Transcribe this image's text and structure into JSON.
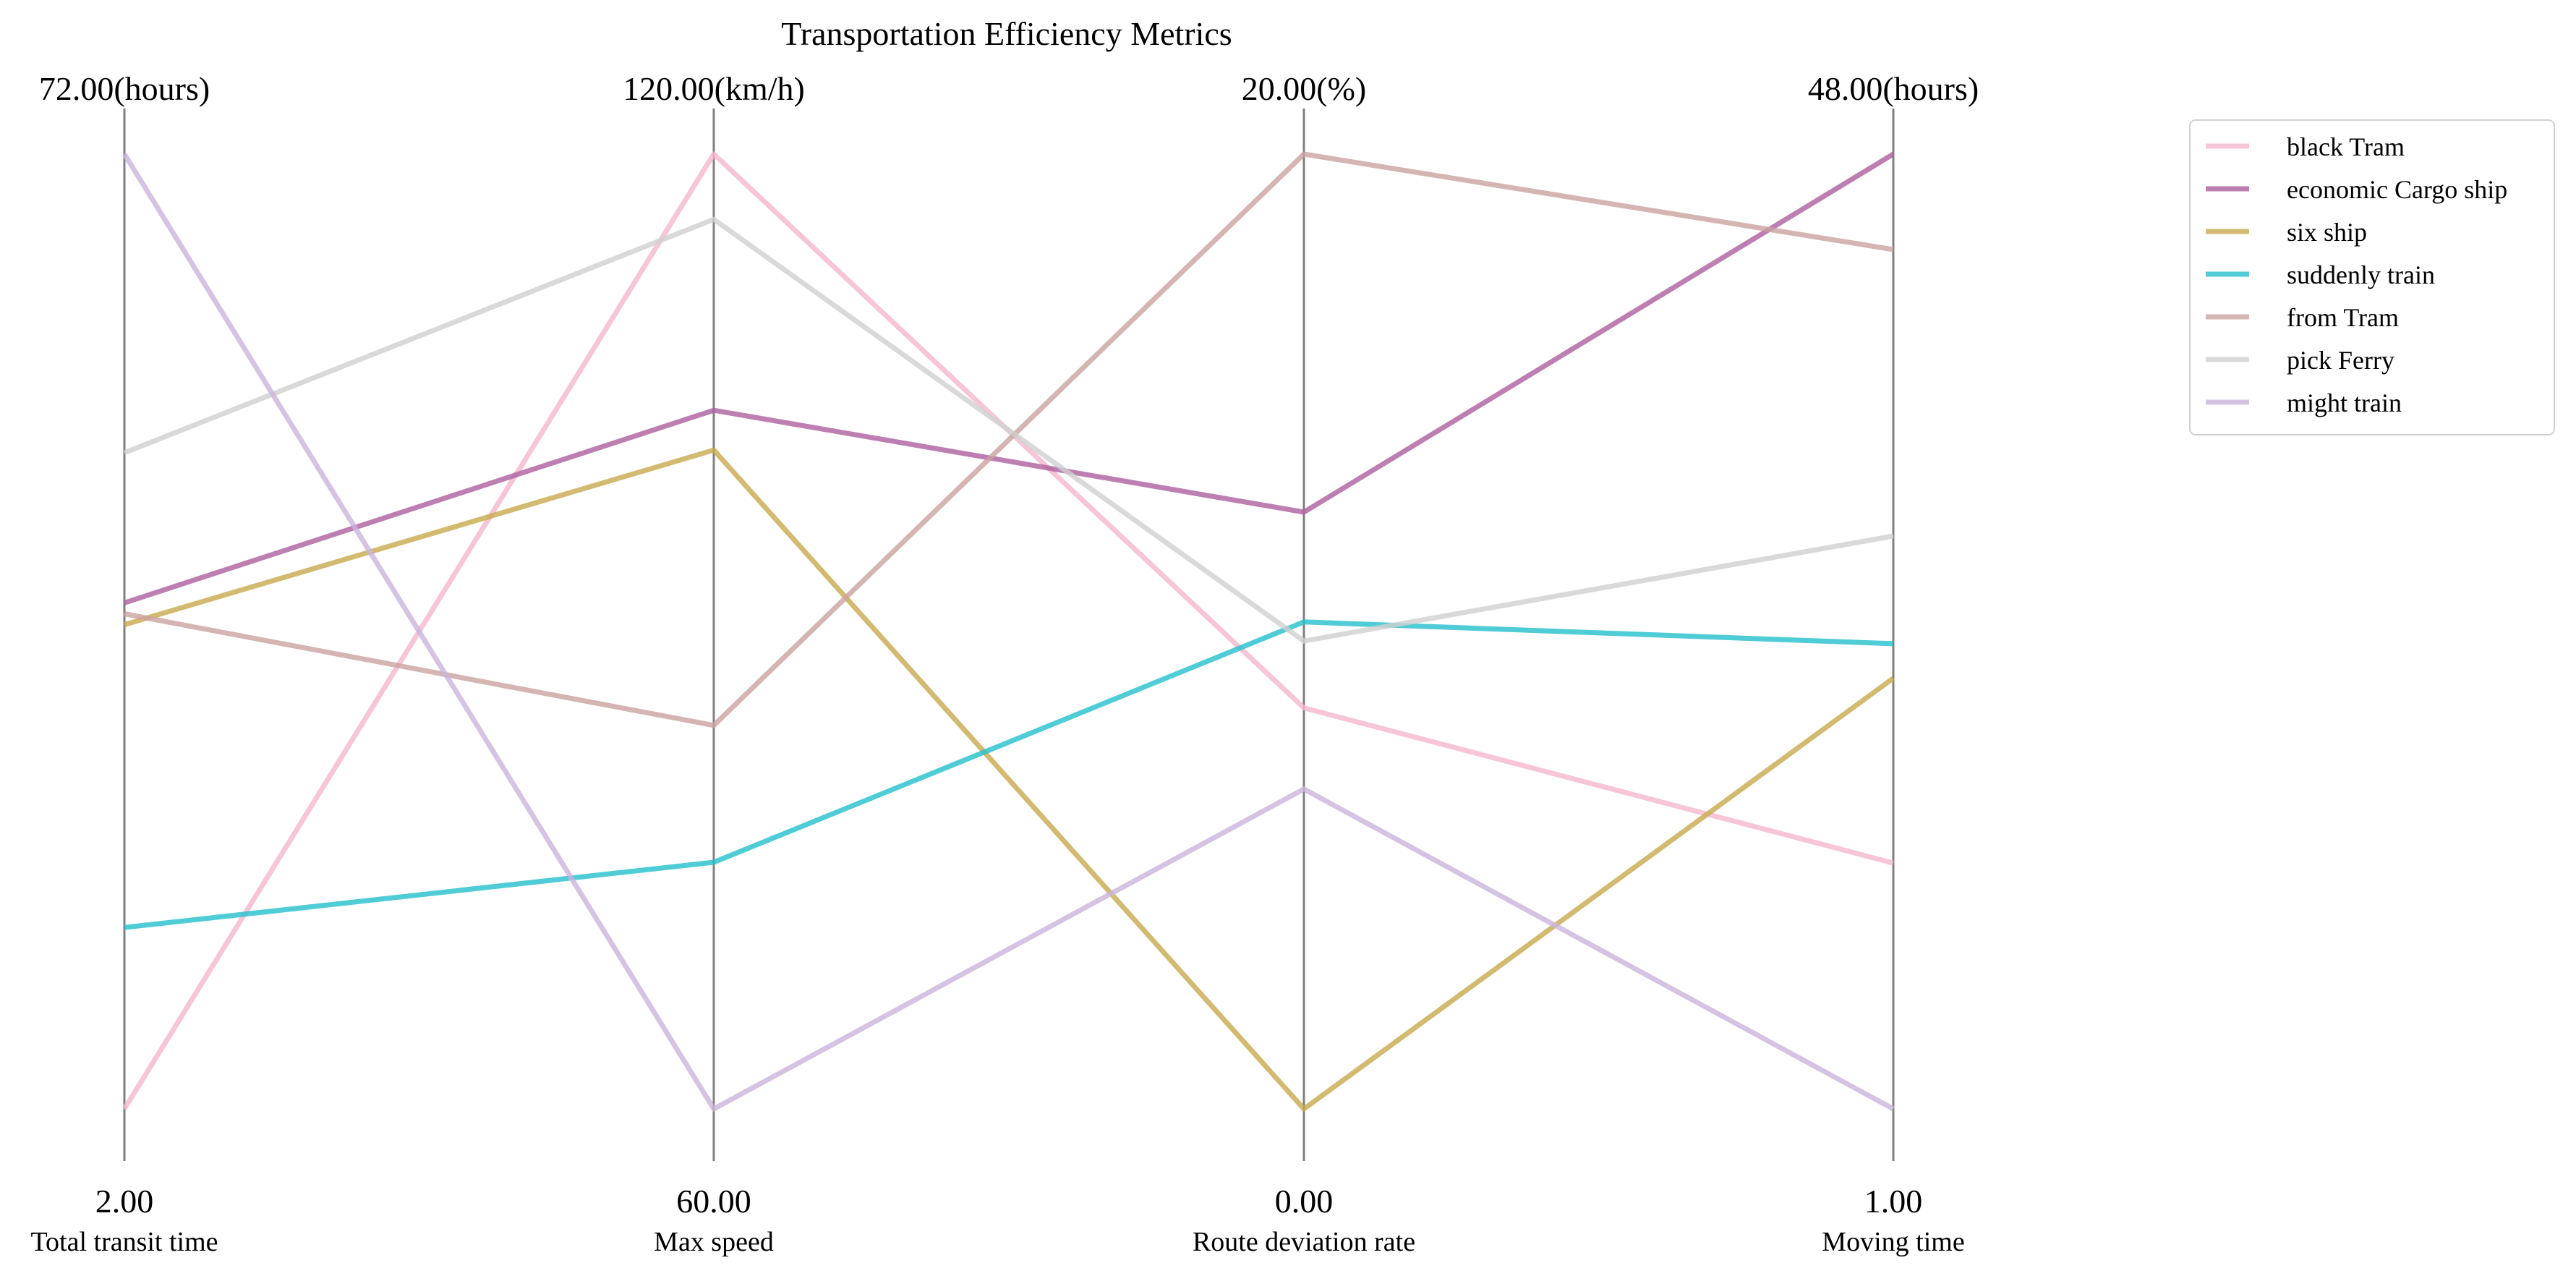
{
  "chart_data": {
    "type": "parallel_coordinates",
    "title": "Transportation Efficiency Metrics",
    "axes": [
      {
        "name": "Total transit time",
        "min": 2.0,
        "max": 72.0,
        "min_label": "2.00",
        "max_label": "72.00(hours)"
      },
      {
        "name": "Max speed",
        "min": 60.0,
        "max": 120.0,
        "min_label": "60.00",
        "max_label": "120.00(km/h)"
      },
      {
        "name": "Route deviation rate",
        "min": 0.0,
        "max": 20.0,
        "min_label": "0.00",
        "max_label": "20.00(%)"
      },
      {
        "name": "Moving time",
        "min": 1.0,
        "max": 48.0,
        "min_label": "1.00",
        "max_label": "48.00(hours)"
      }
    ],
    "series": [
      {
        "name": "black Tram",
        "color": "#f4b6cd",
        "values": [
          2.0,
          120.0,
          8.4,
          13.1
        ]
      },
      {
        "name": "economic Cargo ship",
        "color": "#ad5f9f",
        "values": [
          39.1,
          103.9,
          12.5,
          48.0
        ]
      },
      {
        "name": "six ship",
        "color": "#c8a94d",
        "values": [
          37.5,
          101.4,
          0.0,
          22.2
        ]
      },
      {
        "name": "suddenly train",
        "color": "#23bfcc",
        "values": [
          15.3,
          75.5,
          10.2,
          23.9
        ]
      },
      {
        "name": "from Tram",
        "color": "#caa2a0",
        "values": [
          38.3,
          84.1,
          20.0,
          43.3
        ]
      },
      {
        "name": "pick Ferry",
        "color": "#cfcfcf",
        "values": [
          50.1,
          115.9,
          9.8,
          29.2
        ]
      },
      {
        "name": "might train",
        "color": "#c9b4dc",
        "values": [
          72.0,
          60.0,
          6.7,
          1.0
        ]
      }
    ],
    "legend_position": "top-right",
    "grid": false
  }
}
